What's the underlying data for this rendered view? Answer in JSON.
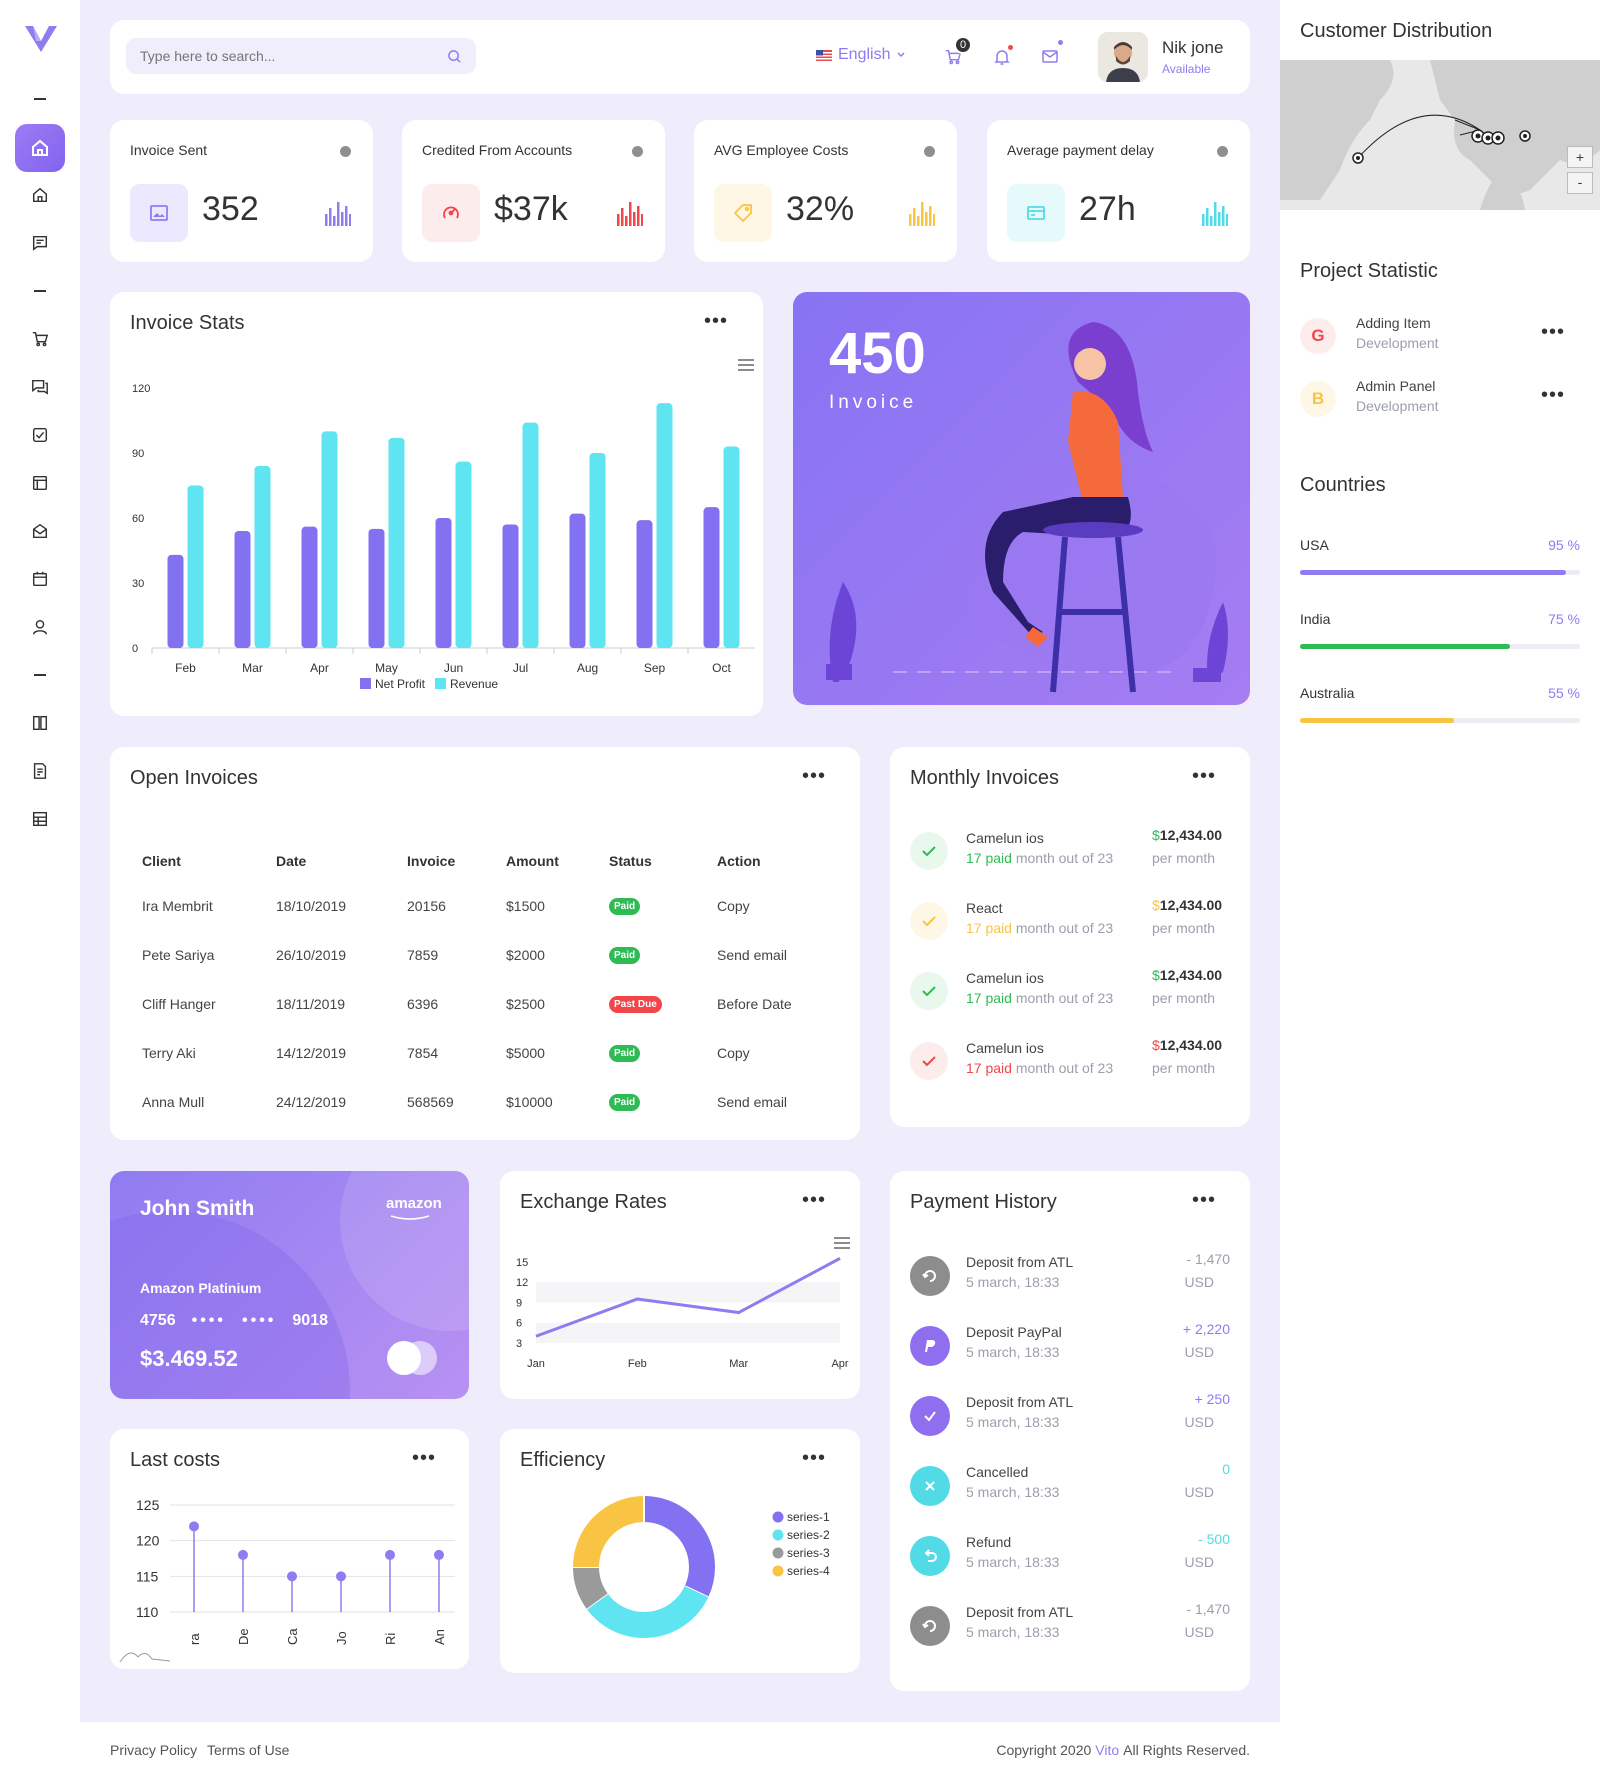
{
  "header": {
    "search_placeholder": "Type here to search...",
    "language": "English",
    "cart_count": "0",
    "user_name": "Nik jone",
    "user_status": "Available"
  },
  "stats": [
    {
      "label": "Invoice Sent",
      "value": "352",
      "color": "#8f7cf1",
      "bg": "#ece8fd"
    },
    {
      "label": "Credited From Accounts",
      "value": "$37k",
      "color": "#f2464b",
      "bg": "#fdecec"
    },
    {
      "label": "AVG Employee Costs",
      "value": "32%",
      "color": "#f9c444",
      "bg": "#fef7e6"
    },
    {
      "label": "Average payment delay",
      "value": "27h",
      "color": "#52dbe6",
      "bg": "#e6f9fb"
    }
  ],
  "invoice_stats": {
    "title": "Invoice Stats",
    "chart_data": {
      "type": "bar",
      "categories": [
        "Feb",
        "Mar",
        "Apr",
        "May",
        "Jun",
        "Jul",
        "Aug",
        "Sep",
        "Oct"
      ],
      "series": [
        {
          "name": "Net Profit",
          "values": [
            43,
            54,
            56,
            55,
            60,
            57,
            62,
            59,
            65
          ],
          "color": "#8271f1"
        },
        {
          "name": "Revenue",
          "values": [
            75,
            84,
            100,
            97,
            86,
            104,
            90,
            113,
            93
          ],
          "color": "#5ee5f1"
        }
      ],
      "yticks": [
        "0",
        "30",
        "60",
        "90",
        "120"
      ],
      "ylim": [
        0,
        120
      ]
    }
  },
  "promo": {
    "number": "450",
    "label": "Invoice"
  },
  "open_invoices": {
    "title": "Open Invoices",
    "columns": [
      "Client",
      "Date",
      "Invoice",
      "Amount",
      "Status",
      "Action"
    ],
    "rows": [
      [
        "Ira Membrit",
        "18/10/2019",
        "20156",
        "$1500",
        "Paid",
        "Copy"
      ],
      [
        "Pete Sariya",
        "26/10/2019",
        "7859",
        "$2000",
        "Paid",
        "Send email"
      ],
      [
        "Cliff Hanger",
        "18/11/2019",
        "6396",
        "$2500",
        "Past Due",
        "Before Date"
      ],
      [
        "Terry Aki",
        "14/12/2019",
        "7854",
        "$5000",
        "Paid",
        "Copy"
      ],
      [
        "Anna Mull",
        "24/12/2019",
        "568569",
        "$10000",
        "Paid",
        "Send email"
      ]
    ],
    "status_colors": {
      "Paid": "#2fbb54",
      "Past Due": "#f2464b"
    }
  },
  "monthly_invoices": {
    "title": "Monthly Invoices",
    "items": [
      {
        "name": "Camelun ios",
        "count": "17 paid",
        "suffix": "month out of 23",
        "amount": "12,434.00",
        "period": "per month",
        "color": "#2fbb54",
        "bg": "#e9f8ec"
      },
      {
        "name": "React",
        "count": "17 paid",
        "suffix": "month out of 23",
        "amount": "12,434.00",
        "period": "per month",
        "color": "#f9c444",
        "bg": "#fef7e6"
      },
      {
        "name": "Camelun ios",
        "count": "17 paid",
        "suffix": "month out of 23",
        "amount": "12,434.00",
        "period": "per month",
        "color": "#2fbb54",
        "bg": "#e9f8ec"
      },
      {
        "name": "Camelun ios",
        "count": "17 paid",
        "suffix": "month out of 23",
        "amount": "12,434.00",
        "period": "per month",
        "color": "#f2464b",
        "bg": "#fdecec"
      }
    ],
    "currency": "$"
  },
  "credit_card": {
    "holder": "John Smith",
    "brand": "amazon",
    "card_type": "Amazon Platinium",
    "number_start": "4756",
    "number_mask_1": "••••",
    "number_mask_2": "••••",
    "number_end": "9018",
    "balance": "$3.469.52"
  },
  "exchange_rates": {
    "title": "Exchange Rates",
    "chart_data": {
      "type": "line",
      "categories": [
        "Jan",
        "Feb",
        "Mar",
        "Apr"
      ],
      "values": [
        4,
        9.5,
        7.5,
        15.5
      ],
      "yticks": [
        "3",
        "6",
        "9",
        "12",
        "15"
      ],
      "ylim": [
        3,
        16
      ],
      "color": "#8f7cf1"
    }
  },
  "payment_history": {
    "title": "Payment History",
    "items": [
      {
        "name": "Deposit from ATL",
        "date": "5 march, 18:33",
        "amount": "- 1,470",
        "currency": "USD",
        "color": "#8d8d8d",
        "amount_color": "#9b9fad",
        "icon": "refresh-icon"
      },
      {
        "name": "Deposit PayPal",
        "date": "5 march, 18:33",
        "amount": "+ 2,220",
        "currency": "USD",
        "color": "#8f6ef0",
        "amount_color": "#8f7cf1",
        "icon": "paypal-icon"
      },
      {
        "name": "Deposit from ATL",
        "date": "5 march, 18:33",
        "amount": "+ 250",
        "currency": "USD",
        "color": "#8f6ef0",
        "amount_color": "#8f7cf1",
        "icon": "check-icon"
      },
      {
        "name": "Cancelled",
        "date": "5 march, 18:33",
        "amount": "0",
        "currency": "USD",
        "color": "#52dbe6",
        "amount_color": "#52dbe6",
        "icon": "close-icon"
      },
      {
        "name": "Refund",
        "date": "5 march, 18:33",
        "amount": "- 500",
        "currency": "USD",
        "color": "#52dbe6",
        "amount_color": "#52dbe6",
        "icon": "undo-icon"
      },
      {
        "name": "Deposit from ATL",
        "date": "5 march, 18:33",
        "amount": "- 1,470",
        "currency": "USD",
        "color": "#8d8d8d",
        "amount_color": "#9b9fad",
        "icon": "refresh-icon"
      }
    ]
  },
  "last_costs": {
    "title": "Last costs",
    "chart_data": {
      "type": "scatter",
      "categories": [
        "ra",
        "De",
        "Ca",
        "Jo",
        "Ri",
        "An"
      ],
      "values": [
        122,
        118,
        115,
        115,
        118,
        118
      ],
      "yticks": [
        "110",
        "115",
        "120",
        "125"
      ],
      "ylim": [
        110,
        125
      ],
      "color": "#8f7cf1"
    }
  },
  "efficiency": {
    "title": "Efficiency",
    "chart_data": {
      "type": "pie",
      "series": [
        {
          "name": "series-1",
          "value": 32,
          "color": "#8271f1"
        },
        {
          "name": "series-2",
          "value": 33,
          "color": "#5ee5f1"
        },
        {
          "name": "series-3",
          "value": 10,
          "color": "#9a9a9a"
        },
        {
          "name": "series-4",
          "value": 25,
          "color": "#f9c444"
        }
      ]
    }
  },
  "customer_distribution": {
    "title": "Customer Distribution"
  },
  "project_statistic": {
    "title": "Project Statistic",
    "items": [
      {
        "letter": "G",
        "name": "Adding Item",
        "sub": "Development",
        "color": "#f2464b",
        "bg": "#fdecec"
      },
      {
        "letter": "B",
        "name": "Admin Panel",
        "sub": "Development",
        "color": "#f9c444",
        "bg": "#fef7e6"
      }
    ]
  },
  "countries": {
    "title": "Countries",
    "items": [
      {
        "name": "USA",
        "percent_label": "95 %",
        "percent": 95,
        "color": "#8f7cf1"
      },
      {
        "name": "India",
        "percent_label": "75 %",
        "percent": 75,
        "color": "#2fbb54"
      },
      {
        "name": "Australia",
        "percent_label": "55 %",
        "percent": 55,
        "color": "#f9c444"
      }
    ]
  },
  "footer": {
    "privacy": "Privacy Policy",
    "terms": "Terms of Use",
    "copyright_pre": "Copyright 2020",
    "brand": "Vito",
    "copyright_post": "All Rights Reserved."
  }
}
